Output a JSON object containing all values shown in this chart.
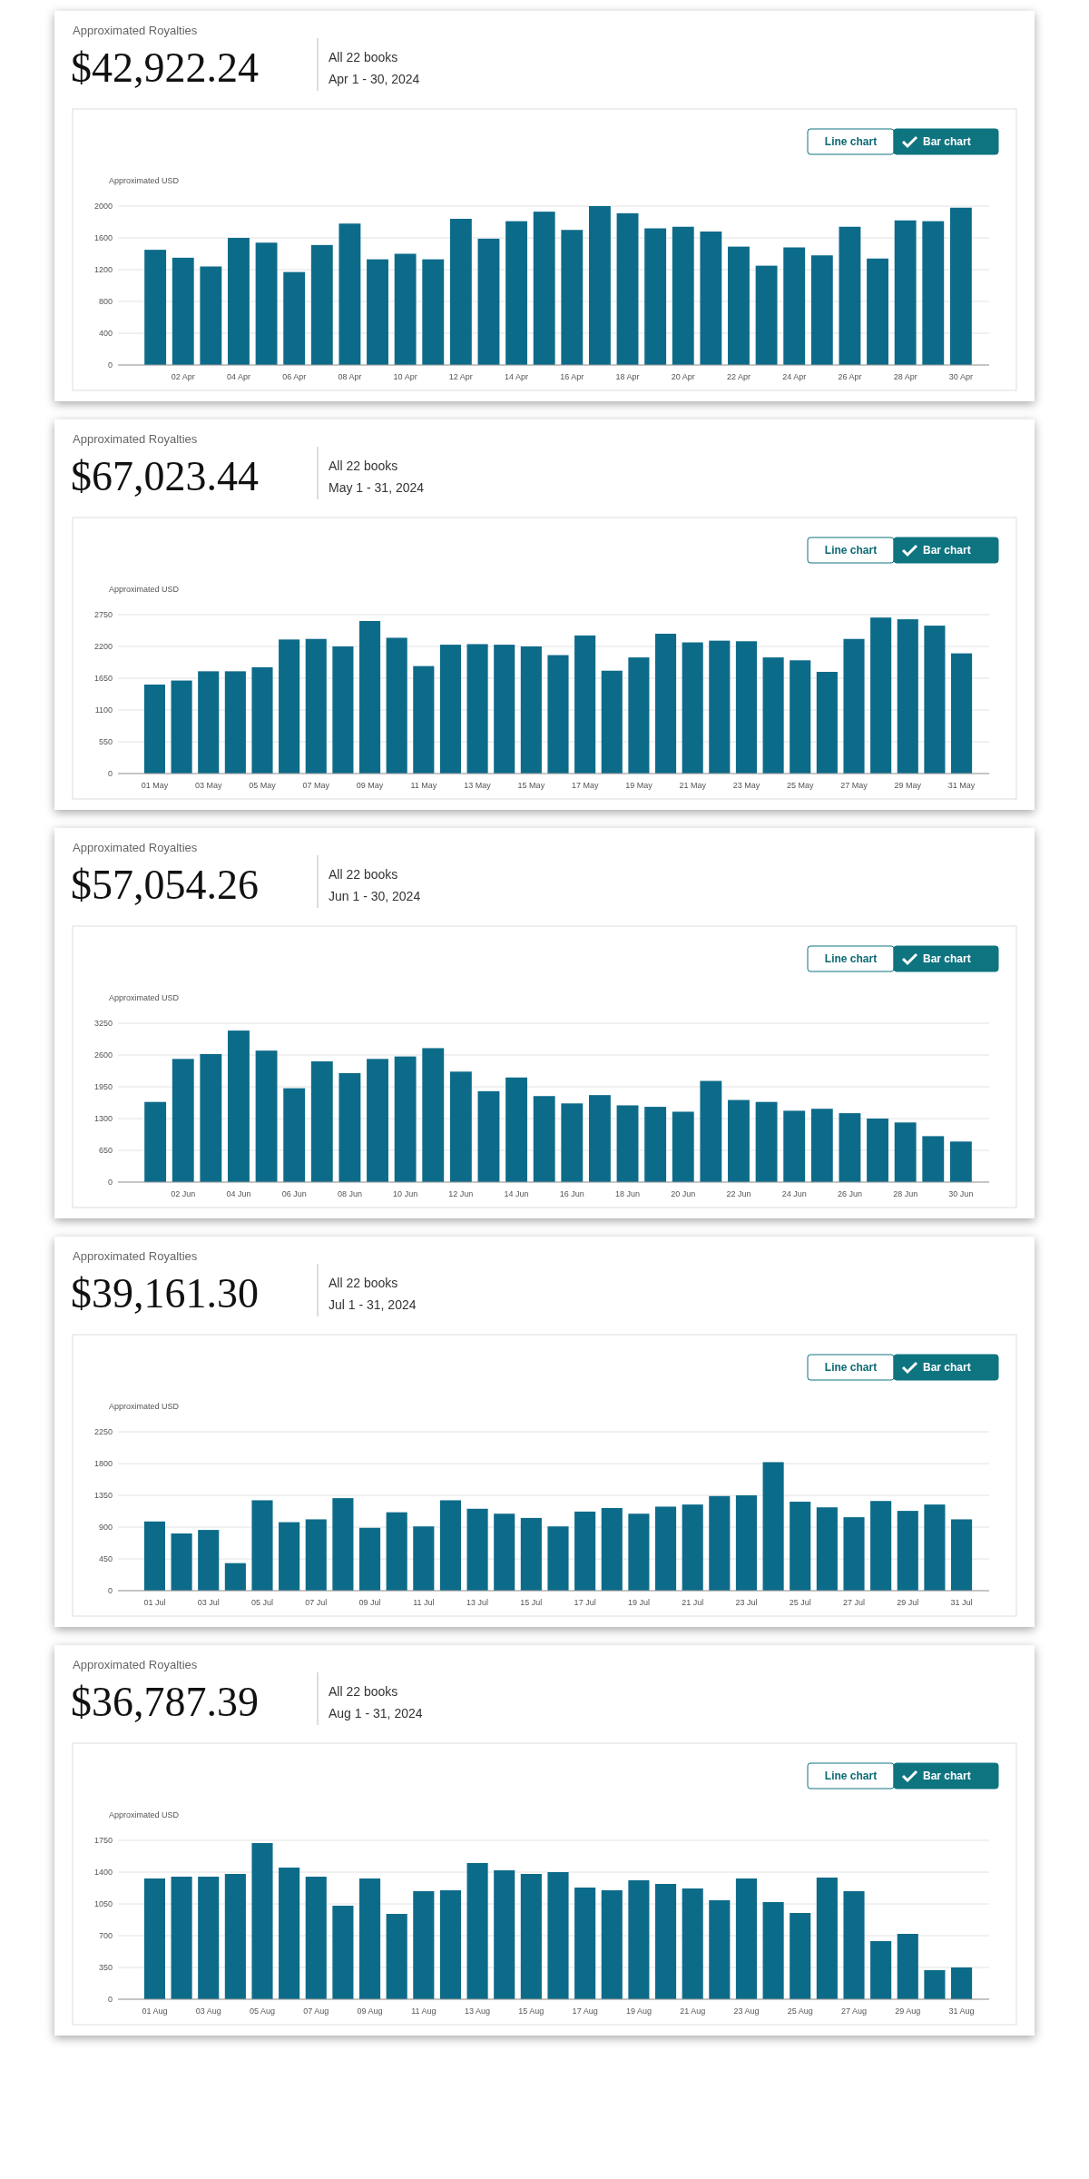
{
  "chart_data": [
    {
      "type": "bar",
      "title": "$42,922.24",
      "subtitle": "All 22 books",
      "ylabel": "Approximated USD",
      "annotations": [
        "Approximated Royalties",
        "Apr 1 - 30, 2024",
        "Line chart",
        "Bar chart"
      ],
      "categories": [
        null,
        "02 Apr",
        null,
        "04 Apr",
        null,
        "06 Apr",
        null,
        "08 Apr",
        null,
        "10 Apr",
        null,
        "12 Apr",
        null,
        "14 Apr",
        null,
        "16 Apr",
        null,
        "18 Apr",
        null,
        "20 Apr",
        null,
        "22 Apr",
        null,
        "24 Apr",
        null,
        "26 Apr",
        null,
        "28 Apr",
        null,
        "30 Apr"
      ],
      "values": [
        1450,
        1350,
        1240,
        1600,
        1540,
        1170,
        1510,
        1780,
        1330,
        1400,
        1330,
        1840,
        1590,
        1810,
        1930,
        1700,
        2000,
        1910,
        1720,
        1740,
        1680,
        1490,
        1250,
        1480,
        1380,
        1740,
        1340,
        1820,
        1810,
        1980
      ],
      "color": "#0d6b8a",
      "ylim": [
        0,
        2000
      ],
      "yticks": [
        0,
        400,
        800,
        1200,
        1600,
        2000
      ],
      "grid": "y"
    },
    {
      "type": "bar",
      "title": "$67,023.44",
      "subtitle": "All 22 books",
      "ylabel": "Approximated USD",
      "annotations": [
        "Approximated Royalties",
        "May 1 - 31, 2024",
        "Line chart",
        "Bar chart"
      ],
      "categories": [
        "01 May",
        null,
        "03 May",
        null,
        "05 May",
        null,
        "07 May",
        null,
        "09 May",
        null,
        "11 May",
        null,
        "13 May",
        null,
        "15 May",
        null,
        "17 May",
        null,
        "19 May",
        null,
        "21 May",
        null,
        "23 May",
        null,
        "25 May",
        null,
        "27 May",
        null,
        "29 May",
        null,
        "31 May"
      ],
      "values": [
        1540,
        1610,
        1770,
        1770,
        1840,
        2320,
        2330,
        2200,
        2640,
        2350,
        1860,
        2230,
        2240,
        2230,
        2200,
        2050,
        2390,
        1780,
        2010,
        2420,
        2270,
        2300,
        2290,
        2010,
        1960,
        1760,
        2330,
        2700,
        2670,
        2560,
        2080
      ],
      "color": "#0d6b8a",
      "ylim": [
        0,
        2750
      ],
      "yticks": [
        0,
        550,
        1100,
        1650,
        2200,
        2750
      ],
      "grid": "y"
    },
    {
      "type": "bar",
      "title": "$57,054.26",
      "subtitle": "All 22 books",
      "ylabel": "Approximated USD",
      "annotations": [
        "Approximated Royalties",
        "Jun 1 - 30, 2024",
        "Line chart",
        "Bar chart"
      ],
      "categories": [
        null,
        "02 Jun",
        null,
        "04 Jun",
        null,
        "06 Jun",
        null,
        "08 Jun",
        null,
        "10 Jun",
        null,
        "12 Jun",
        null,
        "14 Jun",
        null,
        "16 Jun",
        null,
        "18 Jun",
        null,
        "20 Jun",
        null,
        "22 Jun",
        null,
        "24 Jun",
        null,
        "26 Jun",
        null,
        "28 Jun",
        null,
        "30 Jun"
      ],
      "values": [
        1640,
        2520,
        2620,
        3100,
        2690,
        1920,
        2470,
        2230,
        2520,
        2570,
        2740,
        2260,
        1860,
        2140,
        1760,
        1610,
        1780,
        1570,
        1540,
        1440,
        2070,
        1680,
        1640,
        1460,
        1500,
        1410,
        1300,
        1220,
        940,
        830
      ],
      "color": "#0d6b8a",
      "ylim": [
        0,
        3250
      ],
      "yticks": [
        0,
        650,
        1300,
        1950,
        2600,
        3250
      ],
      "grid": "y"
    },
    {
      "type": "bar",
      "title": "$39,161.30",
      "subtitle": "All 22 books",
      "ylabel": "Approximated USD",
      "annotations": [
        "Approximated Royalties",
        "Jul 1 - 31, 2024",
        "Line chart",
        "Bar chart"
      ],
      "categories": [
        "01 Jul",
        null,
        "03 Jul",
        null,
        "05 Jul",
        null,
        "07 Jul",
        null,
        "09 Jul",
        null,
        "11 Jul",
        null,
        "13 Jul",
        null,
        "15 Jul",
        null,
        "17 Jul",
        null,
        "19 Jul",
        null,
        "21 Jul",
        null,
        "23 Jul",
        null,
        "25 Jul",
        null,
        "27 Jul",
        null,
        "29 Jul",
        null,
        "31 Jul"
      ],
      "values": [
        980,
        810,
        860,
        390,
        1280,
        970,
        1010,
        1310,
        890,
        1110,
        910,
        1280,
        1160,
        1090,
        1030,
        910,
        1120,
        1170,
        1090,
        1190,
        1220,
        1340,
        1350,
        1820,
        1260,
        1180,
        1040,
        1270,
        1130,
        1220,
        1010
      ],
      "color": "#0d6b8a",
      "ylim": [
        0,
        2250
      ],
      "yticks": [
        0,
        450,
        900,
        1350,
        1800,
        2250
      ],
      "grid": "y"
    },
    {
      "type": "bar",
      "title": "$36,787.39",
      "subtitle": "All 22 books",
      "ylabel": "Approximated USD",
      "annotations": [
        "Approximated Royalties",
        "Aug 1 - 31, 2024",
        "Line chart",
        "Bar chart"
      ],
      "categories": [
        "01 Aug",
        null,
        "03 Aug",
        null,
        "05 Aug",
        null,
        "07 Aug",
        null,
        "09 Aug",
        null,
        "11 Aug",
        null,
        "13 Aug",
        null,
        "15 Aug",
        null,
        "17 Aug",
        null,
        "19 Aug",
        null,
        "21 Aug",
        null,
        "23 Aug",
        null,
        "25 Aug",
        null,
        "27 Aug",
        null,
        "29 Aug",
        null,
        "31 Aug"
      ],
      "values": [
        1330,
        1350,
        1350,
        1380,
        1720,
        1450,
        1350,
        1030,
        1330,
        940,
        1190,
        1200,
        1500,
        1420,
        1380,
        1400,
        1230,
        1200,
        1310,
        1270,
        1220,
        1090,
        1330,
        1070,
        950,
        1340,
        1190,
        640,
        720,
        320,
        350
      ],
      "color": "#0d6b8a",
      "ylim": [
        0,
        1750
      ],
      "yticks": [
        0,
        350,
        700,
        1050,
        1400,
        1750
      ],
      "grid": "y"
    }
  ]
}
